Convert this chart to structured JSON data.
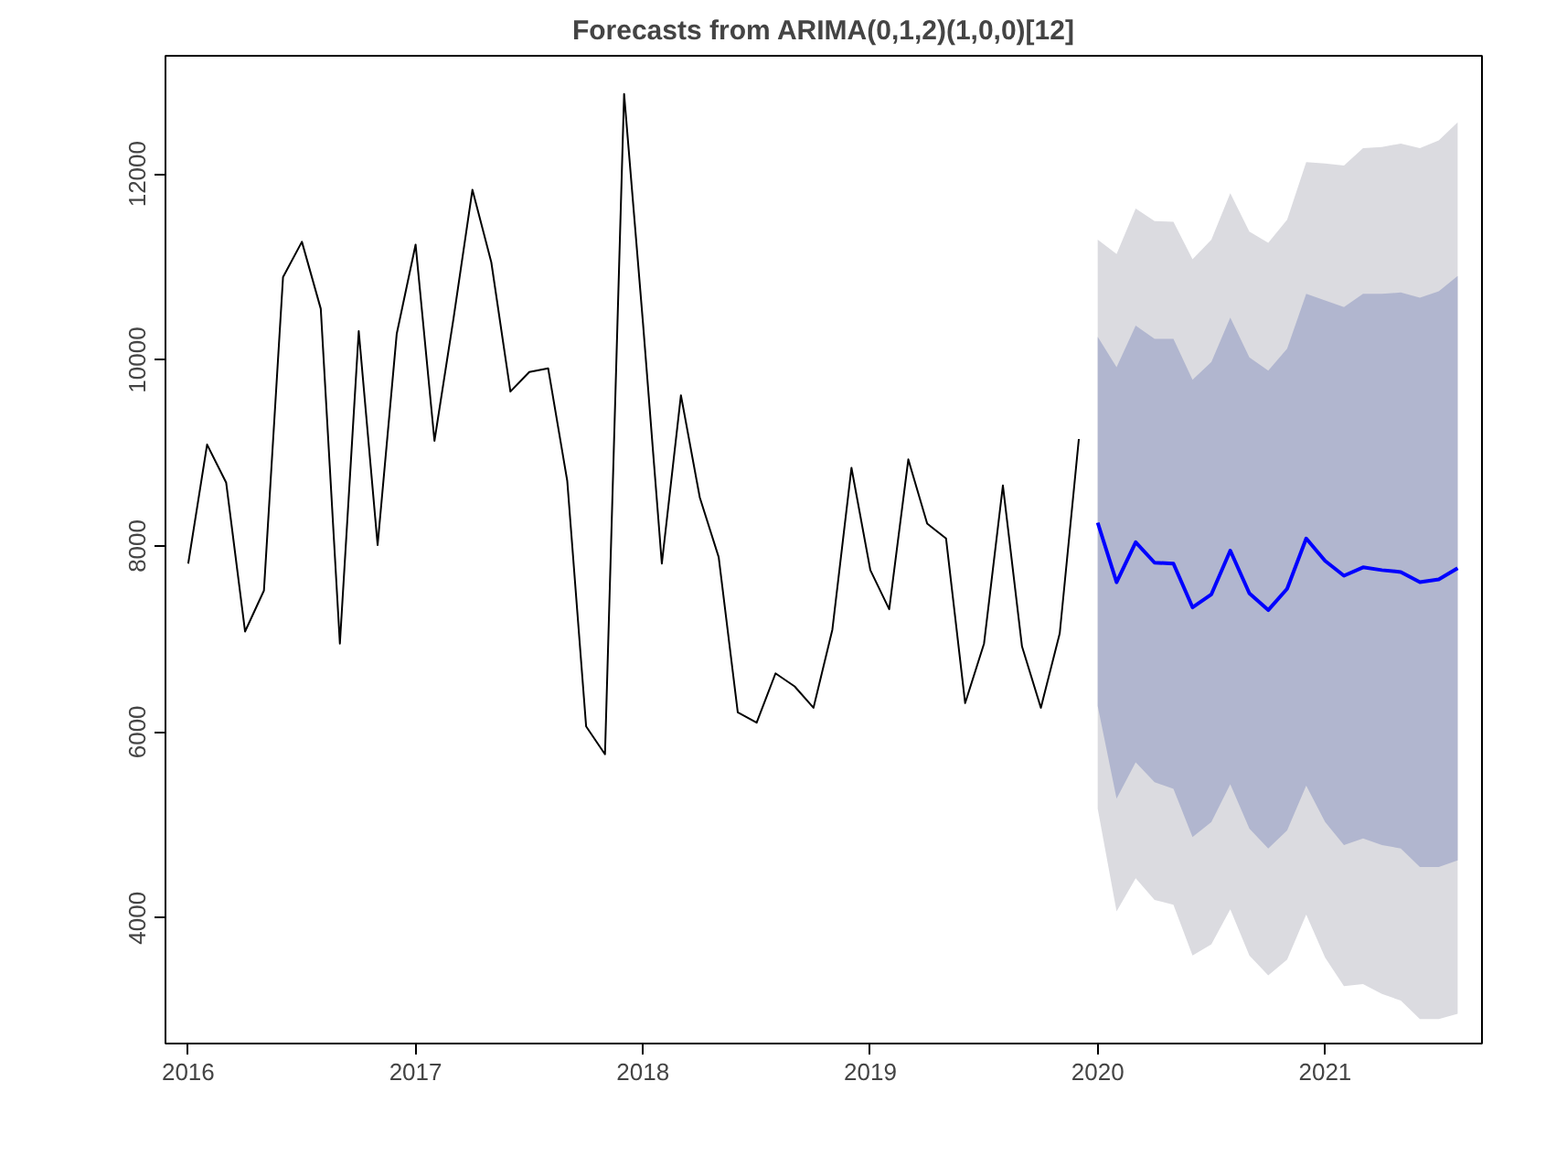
{
  "chart_data": {
    "type": "line",
    "title": "Forecasts from ARIMA(0,1,2)(1,0,0)[12]",
    "xlim": [
      2015.9,
      2021.69
    ],
    "ylim": [
      2650,
      13270
    ],
    "xticks": [
      2016,
      2017,
      2018,
      2019,
      2020,
      2021
    ],
    "yticks": [
      4000,
      6000,
      8000,
      10000,
      12000
    ],
    "grid": false,
    "line_style": "solid",
    "marker": "none",
    "series": [
      {
        "color": "#dbdbe0",
        "x": [
          2020.0,
          2020.083,
          2020.167,
          2020.25,
          2020.333,
          2020.417,
          2020.5,
          2020.583,
          2020.667,
          2020.75,
          2020.833,
          2020.917,
          2021.0,
          2021.083,
          2021.167,
          2021.25,
          2021.333,
          2021.417,
          2021.5,
          2021.583
        ],
        "values": [
          null,
          null,
          null,
          null,
          null,
          null,
          null,
          null,
          null,
          null,
          null,
          null,
          null,
          null,
          null,
          null,
          null,
          null,
          null,
          null
        ],
        "lower": [
          5175,
          4072,
          4428,
          4193,
          4143,
          3596,
          3717,
          4094,
          3596,
          3382,
          3553,
          4037,
          3574,
          3268,
          3290,
          3183,
          3112,
          2912,
          2912,
          2969
        ],
        "upper": [
          11294,
          11138,
          11629,
          11493,
          11486,
          11081,
          11294,
          11792,
          11380,
          11259,
          11508,
          12127,
          12112,
          12091,
          12276,
          12290,
          12326,
          12276,
          12361,
          12554
        ]
      },
      {
        "color": "#0000ff",
        "x": [
          2020.0,
          2020.083,
          2020.167,
          2020.25,
          2020.333,
          2020.417,
          2020.5,
          2020.583,
          2020.667,
          2020.75,
          2020.833,
          2020.917,
          2021.0,
          2021.083,
          2021.167,
          2021.25,
          2021.333,
          2021.417,
          2021.5,
          2021.583
        ],
        "values": [
          8250,
          7610,
          8040,
          7820,
          7810,
          7340,
          7480,
          7950,
          7490,
          7310,
          7540,
          8080,
          7840,
          7680,
          7770,
          7740,
          7720,
          7610,
          7640,
          7760
        ],
        "lower": [
          6278,
          5282,
          5673,
          5460,
          5389,
          4869,
          5033,
          5438,
          4962,
          4748,
          4941,
          5424,
          5033,
          4784,
          4855,
          4784,
          4748,
          4549,
          4549,
          4620
        ],
        "upper": [
          10248,
          9921,
          10369,
          10227,
          10227,
          9786,
          9978,
          10455,
          10028,
          9885,
          10120,
          10711,
          10640,
          10568,
          10711,
          10711,
          10725,
          10668,
          10739,
          10903
        ]
      },
      {
        "color": "#000000",
        "x": [
          2016.0,
          2016.083,
          2016.167,
          2016.25,
          2016.333,
          2016.417,
          2016.5,
          2016.583,
          2016.667,
          2016.75,
          2016.833,
          2016.917,
          2017.0,
          2017.083,
          2017.167,
          2017.25,
          2017.333,
          2017.417,
          2017.5,
          2017.583,
          2017.667,
          2017.75,
          2017.833,
          2017.917,
          2018.0,
          2018.083,
          2018.167,
          2018.25,
          2018.333,
          2018.417,
          2018.5,
          2018.583,
          2018.667,
          2018.75,
          2018.833,
          2018.917,
          2019.0,
          2019.083,
          2019.167,
          2019.25,
          2019.333,
          2019.417,
          2019.5,
          2019.583,
          2019.667,
          2019.75,
          2019.833,
          2019.917
        ],
        "values": [
          7810,
          9090,
          8680,
          7080,
          7520,
          10890,
          11270,
          10550,
          6950,
          10310,
          8010,
          10280,
          11240,
          9130,
          10450,
          11830,
          11050,
          9660,
          9870,
          9910,
          8700,
          6060,
          5760,
          12860,
          10400,
          7810,
          9620,
          8520,
          7880,
          6210,
          6100,
          6630,
          6490,
          6260,
          7100,
          8840,
          7740,
          7320,
          8930,
          8240,
          8080,
          6310,
          6950,
          8650,
          6920,
          6260,
          7060,
          9150
        ]
      }
    ]
  }
}
